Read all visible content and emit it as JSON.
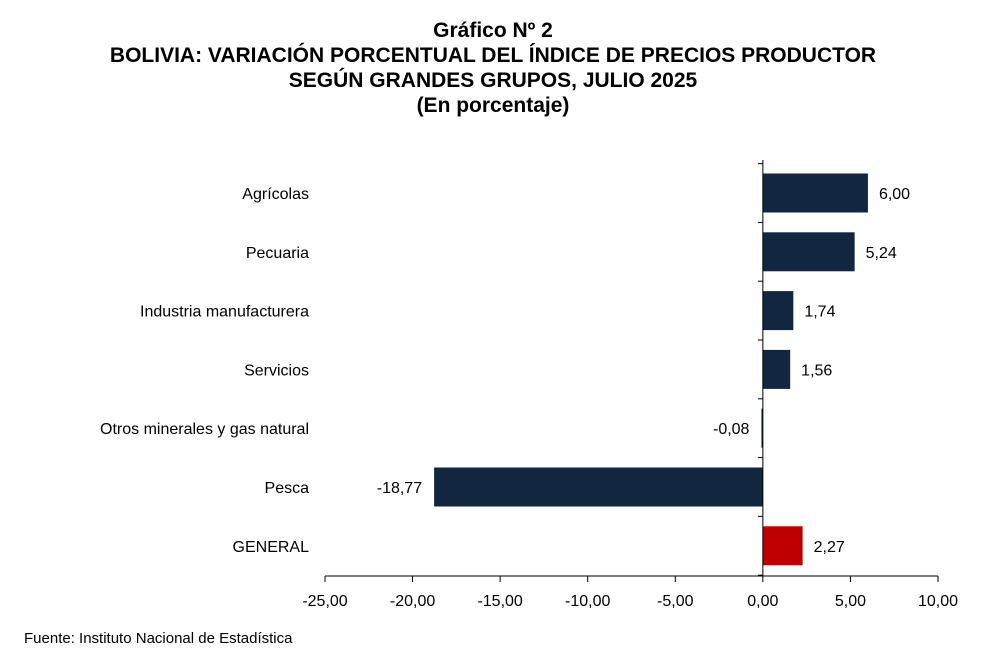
{
  "header": {
    "figure_number": "Gráfico Nº 2",
    "title_line1": "BOLIVIA: VARIACIÓN PORCENTUAL DEL ÍNDICE DE PRECIOS PRODUCTOR",
    "title_line2": "SEGÚN GRANDES GRUPOS, JULIO 2025",
    "title_line3": "(En porcentaje)"
  },
  "source": "Fuente: Instituto Nacional de Estadística",
  "colors": {
    "bar": "#132640",
    "general": "#c00000",
    "axis": "#000000"
  },
  "chart_data": {
    "type": "bar",
    "orientation": "horizontal",
    "title": "BOLIVIA: VARIACIÓN PORCENTUAL DEL ÍNDICE DE PRECIOS PRODUCTOR SEGÚN GRANDES GRUPOS, JULIO 2025",
    "subtitle": "(En porcentaje)",
    "categories": [
      "Agrícolas",
      "Pecuaria",
      "Industria manufacturera",
      "Servicios",
      "Otros minerales y gas natural",
      "Pesca",
      "GENERAL"
    ],
    "values": [
      6.0,
      5.24,
      1.74,
      1.56,
      -0.08,
      -18.77,
      2.27
    ],
    "value_labels": [
      "6,00",
      "5,24",
      "1,74",
      "1,56",
      "-0,08",
      "-18,77",
      "2,27"
    ],
    "highlight_category": "GENERAL",
    "xlim": [
      -25,
      10
    ],
    "x_ticks": [
      -25,
      -20,
      -15,
      -10,
      -5,
      0,
      5,
      10
    ],
    "x_tick_labels": [
      "-25,00",
      "-20,00",
      "-15,00",
      "-10,00",
      "-5,00",
      "0,00",
      "5,00",
      "10,00"
    ],
    "xlabel": "",
    "ylabel": "",
    "grid": false,
    "legend": "none"
  }
}
